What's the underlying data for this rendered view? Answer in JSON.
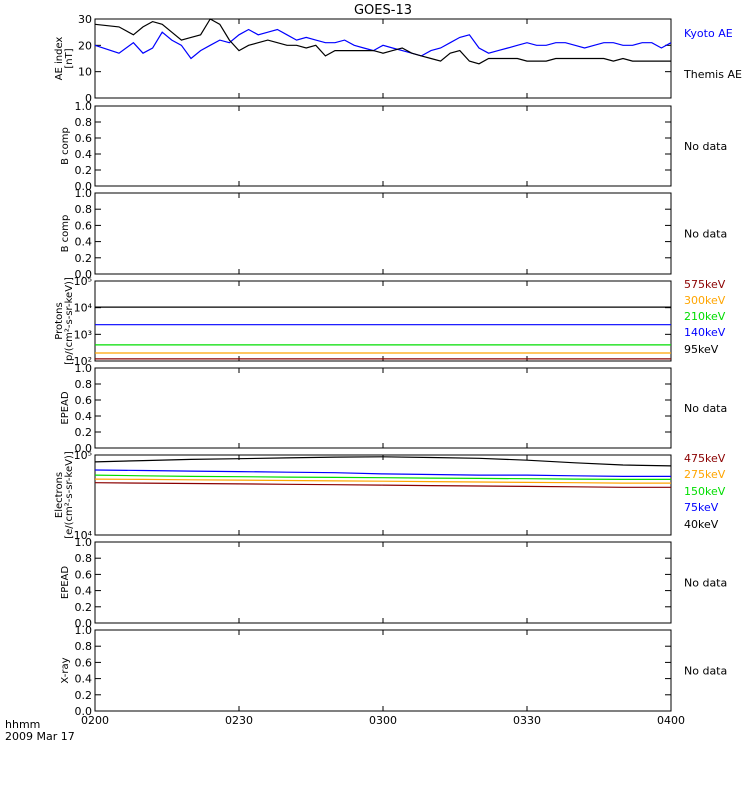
{
  "title": "GOES-13",
  "colors": {
    "black": "#000000",
    "blue": "#0000ff",
    "red": "#8b0000",
    "orange": "#ffa500",
    "green": "#00dd00",
    "frame": "#000000"
  },
  "footer": {
    "x_axis_label": "hhmm",
    "date": "2009 Mar 17"
  },
  "x_axis": {
    "ticks": [
      "0200",
      "0230",
      "0300",
      "0330",
      "0400"
    ],
    "range_minutes": [
      0,
      120
    ]
  },
  "no_data_label": "No data",
  "panels": [
    {
      "id": "ae",
      "ylabel_lines": [
        "AE index",
        "[nT]"
      ],
      "y_ticks": [
        "0",
        "10",
        "20",
        "30"
      ],
      "ylim": [
        0,
        30
      ],
      "legend": [
        {
          "text": "Kyoto AE",
          "color": "#0000ff"
        },
        {
          "text": "Themis AE",
          "color": "#000000"
        }
      ]
    },
    {
      "id": "bcomp1",
      "ylabel_lines": [
        "B comp"
      ],
      "y_ticks": [
        "0.0",
        "0.2",
        "0.4",
        "0.6",
        "0.8",
        "1.0"
      ],
      "ylim": [
        0,
        1
      ],
      "no_data": true
    },
    {
      "id": "bcomp2",
      "ylabel_lines": [
        "B comp"
      ],
      "y_ticks": [
        "0.0",
        "0.2",
        "0.4",
        "0.6",
        "0.8",
        "1.0"
      ],
      "ylim": [
        0,
        1
      ],
      "no_data": true
    },
    {
      "id": "protons",
      "ylabel_lines": [
        "Protons",
        "[p/(cm²-s-sr-keV)]"
      ],
      "y_ticks": [
        "10²",
        "10³",
        "10⁴",
        "10⁵"
      ],
      "ylim": [
        100,
        100000
      ],
      "log": true,
      "legend": [
        {
          "text": "575keV",
          "color": "#8b0000"
        },
        {
          "text": "300keV",
          "color": "#ffa500"
        },
        {
          "text": "210keV",
          "color": "#00dd00"
        },
        {
          "text": "140keV",
          "color": "#0000ff"
        },
        {
          "text": "95keV",
          "color": "#000000"
        }
      ]
    },
    {
      "id": "epead1",
      "ylabel_lines": [
        "EPEAD"
      ],
      "y_ticks": [
        "0.0",
        "0.2",
        "0.4",
        "0.6",
        "0.8",
        "1.0"
      ],
      "ylim": [
        0,
        1
      ],
      "no_data": true
    },
    {
      "id": "electrons",
      "ylabel_lines": [
        "Electrons",
        "[e/(cm²-s-sr-keV)]"
      ],
      "y_ticks": [
        "10⁴",
        "10⁵"
      ],
      "ylim": [
        10000,
        100000
      ],
      "log": true,
      "legend": [
        {
          "text": "475keV",
          "color": "#8b0000"
        },
        {
          "text": "275keV",
          "color": "#ffa500"
        },
        {
          "text": "150keV",
          "color": "#00dd00"
        },
        {
          "text": "75keV",
          "color": "#0000ff"
        },
        {
          "text": "40keV",
          "color": "#000000"
        }
      ]
    },
    {
      "id": "epead2",
      "ylabel_lines": [
        "EPEAD"
      ],
      "y_ticks": [
        "0.0",
        "0.2",
        "0.4",
        "0.6",
        "0.8",
        "1.0"
      ],
      "ylim": [
        0,
        1
      ],
      "no_data": true
    },
    {
      "id": "xray",
      "ylabel_lines": [
        "X-ray"
      ],
      "y_ticks": [
        "0.0",
        "0.2",
        "0.4",
        "0.6",
        "0.8",
        "1.0"
      ],
      "ylim": [
        0,
        1
      ],
      "no_data": true
    }
  ],
  "chart_data": {
    "type": "line",
    "title": "GOES-13",
    "x_ticks": [
      "0200",
      "0230",
      "0300",
      "0330",
      "0400"
    ],
    "ae_index": {
      "x_minutes": [
        0,
        5,
        8,
        10,
        12,
        14,
        16,
        18,
        20,
        22,
        24,
        26,
        28,
        30,
        32,
        34,
        36,
        38,
        40,
        42,
        44,
        46,
        48,
        50,
        52,
        54,
        56,
        58,
        60,
        62,
        64,
        66,
        68,
        70,
        72,
        74,
        76,
        78,
        80,
        82,
        84,
        86,
        88,
        90,
        92,
        94,
        96,
        98,
        100,
        102,
        104,
        106,
        108,
        110,
        112,
        114,
        116,
        118,
        120
      ],
      "series": [
        {
          "name": "Kyoto AE",
          "color": "#0000ff",
          "y": [
            20,
            17,
            21,
            17,
            19,
            25,
            22,
            20,
            15,
            18,
            20,
            22,
            21,
            24,
            26,
            24,
            25,
            26,
            24,
            22,
            23,
            22,
            21,
            21,
            22,
            20,
            19,
            18,
            20,
            19,
            18,
            17,
            16,
            18,
            19,
            21,
            23,
            24,
            19,
            17,
            18,
            19,
            20,
            21,
            20,
            20,
            21,
            21,
            20,
            19,
            20,
            21,
            21,
            20,
            20,
            21,
            21,
            19,
            21
          ]
        },
        {
          "name": "Themis AE",
          "color": "#000000",
          "y": [
            28,
            27,
            24,
            27,
            29,
            28,
            25,
            22,
            23,
            24,
            30,
            28,
            22,
            18,
            20,
            21,
            22,
            21,
            20,
            20,
            19,
            20,
            16,
            18,
            18,
            18,
            18,
            18,
            17,
            18,
            19,
            17,
            16,
            15,
            14,
            17,
            18,
            14,
            13,
            15,
            15,
            15,
            15,
            14,
            14,
            14,
            15,
            15,
            15,
            15,
            15,
            15,
            14,
            15,
            14,
            14,
            14,
            14,
            14
          ]
        }
      ]
    },
    "protons": {
      "x_minutes": [
        0,
        60,
        120
      ],
      "series": [
        {
          "name": "95keV",
          "color": "#000000",
          "y": [
            10500,
            10500,
            10500
          ]
        },
        {
          "name": "140keV",
          "color": "#0000ff",
          "y": [
            2300,
            2300,
            2300
          ]
        },
        {
          "name": "210keV",
          "color": "#00dd00",
          "y": [
            400,
            400,
            400
          ]
        },
        {
          "name": "300keV",
          "color": "#ffa500",
          "y": [
            200,
            200,
            200
          ]
        },
        {
          "name": "575keV",
          "color": "#8b0000",
          "y": [
            120,
            120,
            120
          ]
        }
      ]
    },
    "electrons": {
      "x_minutes": [
        0,
        10,
        20,
        30,
        40,
        50,
        60,
        70,
        80,
        90,
        100,
        110,
        120
      ],
      "series": [
        {
          "name": "40keV",
          "color": "#000000",
          "y": [
            82000,
            85000,
            88000,
            90000,
            92000,
            94000,
            95000,
            93000,
            91000,
            86000,
            80000,
            75000,
            73000
          ]
        },
        {
          "name": "75keV",
          "color": "#0000ff",
          "y": [
            65000,
            64000,
            63000,
            62000,
            61000,
            60000,
            58000,
            57000,
            56000,
            56000,
            55000,
            54000,
            54000
          ]
        },
        {
          "name": "150keV",
          "color": "#00dd00",
          "y": [
            56000,
            55000,
            54000,
            53500,
            53000,
            52500,
            52000,
            51500,
            51000,
            50500,
            50000,
            49500,
            49500
          ]
        },
        {
          "name": "275keV",
          "color": "#ffa500",
          "y": [
            50000,
            49500,
            49000,
            48500,
            48000,
            47500,
            47000,
            46500,
            46000,
            45500,
            45000,
            44500,
            44500
          ]
        },
        {
          "name": "475keV",
          "color": "#8b0000",
          "y": [
            45000,
            44500,
            44000,
            43500,
            43000,
            42500,
            42000,
            41500,
            41000,
            40500,
            40000,
            39500,
            39500
          ]
        }
      ]
    }
  }
}
